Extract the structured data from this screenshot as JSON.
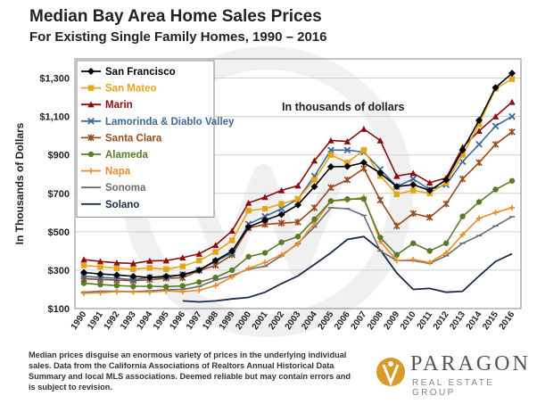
{
  "header": {
    "title": "Median Bay Area Home Sales Prices",
    "subtitle": "For Existing Single Family Homes, 1990 – 2016"
  },
  "footnote": "Median prices disguise an enormous variety of prices in the underlying individual sales. Data from the California Associations of Realtors Annual Historical Data Summary and local MLS associations.  Deemed reliable but may contain errors and is subject to revision.",
  "logo": {
    "name": "PARAGON",
    "tagline": "REAL ESTATE GROUP"
  },
  "chart_data": {
    "type": "line",
    "title": "Median Bay Area Home Sales Prices",
    "subtitle": "For Existing Single Family Homes, 1990 – 2016",
    "ylabel": "In Thousands of Dollars",
    "xlabel": "",
    "annotation": "In thousands of dollars",
    "ylim": [
      100,
      1400
    ],
    "yticks": [
      100,
      300,
      500,
      700,
      900,
      1100,
      1300
    ],
    "ytick_labels": [
      "$100",
      "$300",
      "$500",
      "$700",
      "$900",
      "$1,100",
      "$1,300"
    ],
    "grid": true,
    "legend_position": "top-left",
    "x": [
      "1990",
      "1991",
      "1992",
      "1993",
      "1994",
      "1995",
      "1996",
      "1997",
      "1998",
      "1999",
      "2000",
      "2001",
      "2002",
      "2003",
      "2004",
      "2005",
      "2006",
      "2007",
      "2008",
      "2009",
      "2010",
      "2011",
      "2012",
      "2013",
      "2014",
      "2015",
      "2016"
    ],
    "series": [
      {
        "name": "San Francisco",
        "color": "#000000",
        "marker": "diamond",
        "values": [
          288,
          280,
          275,
          268,
          262,
          268,
          275,
          300,
          350,
          400,
          525,
          560,
          590,
          640,
          735,
          838,
          840,
          860,
          805,
          735,
          745,
          715,
          770,
          925,
          1080,
          1250,
          1325
        ]
      },
      {
        "name": "San Mateo",
        "color": "#e3a619",
        "marker": "square",
        "values": [
          325,
          318,
          310,
          305,
          312,
          305,
          320,
          350,
          395,
          455,
          610,
          620,
          645,
          670,
          770,
          900,
          860,
          925,
          790,
          695,
          715,
          700,
          755,
          900,
          1060,
          1245,
          1295
        ]
      },
      {
        "name": "Marin",
        "color": "#8b0d0d",
        "marker": "triangle",
        "values": [
          355,
          345,
          338,
          335,
          348,
          350,
          365,
          385,
          430,
          505,
          650,
          680,
          715,
          740,
          870,
          975,
          970,
          1035,
          975,
          790,
          805,
          755,
          780,
          940,
          1025,
          1100,
          1175
        ]
      },
      {
        "name": "Lamorinda & Diablo Valley",
        "color": "#3f6a96",
        "marker": "x",
        "values": [
          268,
          262,
          258,
          250,
          262,
          262,
          278,
          300,
          345,
          390,
          540,
          580,
          620,
          670,
          790,
          925,
          925,
          915,
          825,
          735,
          775,
          720,
          745,
          865,
          955,
          1050,
          1100
        ]
      },
      {
        "name": "Santa Clara",
        "color": "#9a4a1c",
        "marker": "star",
        "values": [
          255,
          252,
          248,
          245,
          250,
          258,
          260,
          298,
          325,
          380,
          520,
          538,
          545,
          550,
          625,
          730,
          770,
          830,
          665,
          530,
          595,
          575,
          645,
          775,
          860,
          955,
          1020
        ]
      },
      {
        "name": "Alameda",
        "color": "#5a7a2a",
        "marker": "circle",
        "values": [
          232,
          225,
          220,
          216,
          216,
          214,
          218,
          238,
          262,
          300,
          370,
          390,
          445,
          475,
          565,
          660,
          670,
          670,
          470,
          380,
          440,
          400,
          440,
          580,
          655,
          720,
          765
        ]
      },
      {
        "name": "Napa",
        "color": "#e88c2a",
        "marker": "plus",
        "values": [
          180,
          182,
          188,
          186,
          186,
          192,
          188,
          195,
          220,
          265,
          310,
          340,
          380,
          435,
          545,
          660,
          665,
          680,
          450,
          350,
          355,
          340,
          390,
          485,
          570,
          600,
          625
        ]
      },
      {
        "name": "Sonoma",
        "color": "#6d6d6d",
        "marker": "dash",
        "values": [
          185,
          190,
          190,
          188,
          192,
          198,
          200,
          215,
          248,
          272,
          305,
          320,
          375,
          440,
          525,
          625,
          620,
          585,
          400,
          350,
          350,
          335,
          375,
          440,
          480,
          530,
          578
        ]
      },
      {
        "name": "Solano",
        "color": "#1a2a48",
        "marker": "none",
        "values": [
          null,
          null,
          null,
          null,
          null,
          null,
          140,
          135,
          140,
          150,
          158,
          185,
          230,
          270,
          330,
          390,
          460,
          475,
          405,
          285,
          200,
          205,
          185,
          190,
          270,
          345,
          385
        ]
      }
    ]
  }
}
